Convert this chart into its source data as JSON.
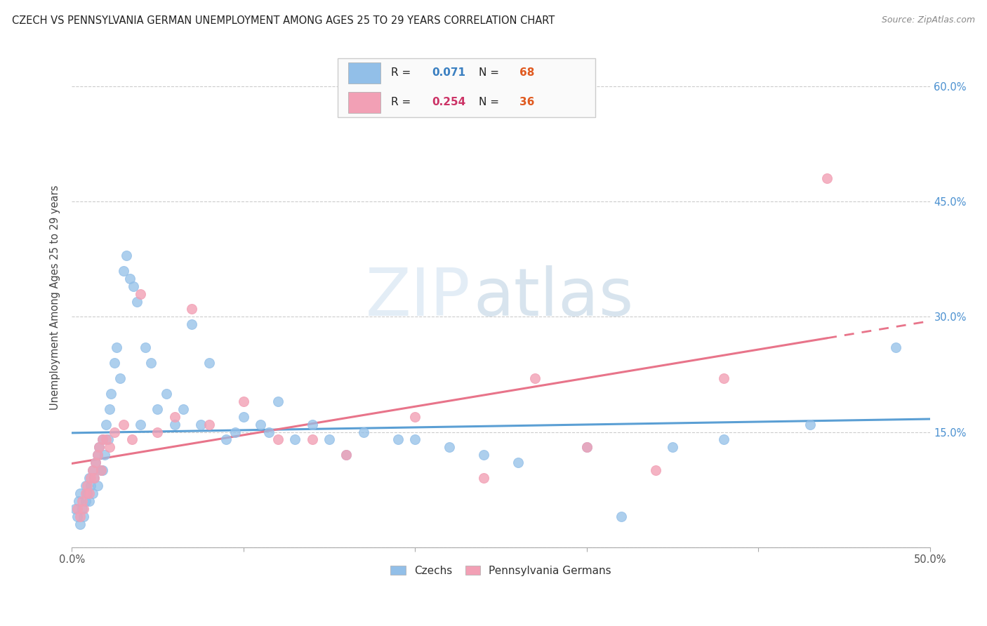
{
  "title": "CZECH VS PENNSYLVANIA GERMAN UNEMPLOYMENT AMONG AGES 25 TO 29 YEARS CORRELATION CHART",
  "source": "Source: ZipAtlas.com",
  "ylabel": "Unemployment Among Ages 25 to 29 years",
  "xlim": [
    0.0,
    0.5
  ],
  "ylim": [
    0.0,
    0.65
  ],
  "xtick_vals": [
    0.0,
    0.1,
    0.2,
    0.3,
    0.4,
    0.5
  ],
  "xticklabels_show": [
    "0.0%",
    "",
    "",
    "",
    "",
    "50.0%"
  ],
  "ytick_vals": [
    0.0,
    0.15,
    0.3,
    0.45,
    0.6
  ],
  "yticklabels_right": [
    "",
    "15.0%",
    "30.0%",
    "45.0%",
    "60.0%"
  ],
  "czech_color": "#92bfe8",
  "penn_color": "#f2a0b5",
  "czech_line_color": "#5b9fd4",
  "penn_line_color": "#e8748a",
  "czech_R": "0.071",
  "czech_N": "68",
  "penn_R": "0.254",
  "penn_N": "36",
  "legend_R_color": "#3a7fc1",
  "legend_N_color": "#e05a20",
  "watermark_zip_color": "#d0dff0",
  "watermark_atlas_color": "#c8d8e8",
  "background_color": "#ffffff",
  "czech_x": [
    0.002,
    0.003,
    0.004,
    0.005,
    0.005,
    0.006,
    0.007,
    0.008,
    0.008,
    0.009,
    0.01,
    0.01,
    0.011,
    0.012,
    0.012,
    0.013,
    0.014,
    0.015,
    0.015,
    0.016,
    0.017,
    0.018,
    0.018,
    0.019,
    0.02,
    0.021,
    0.022,
    0.023,
    0.025,
    0.026,
    0.028,
    0.03,
    0.032,
    0.034,
    0.036,
    0.038,
    0.04,
    0.043,
    0.046,
    0.05,
    0.055,
    0.06,
    0.065,
    0.07,
    0.075,
    0.08,
    0.09,
    0.095,
    0.1,
    0.11,
    0.115,
    0.12,
    0.13,
    0.14,
    0.15,
    0.16,
    0.17,
    0.19,
    0.2,
    0.22,
    0.24,
    0.26,
    0.3,
    0.32,
    0.35,
    0.38,
    0.43,
    0.48
  ],
  "czech_y": [
    0.05,
    0.04,
    0.06,
    0.07,
    0.03,
    0.05,
    0.04,
    0.06,
    0.08,
    0.07,
    0.09,
    0.06,
    0.08,
    0.1,
    0.07,
    0.09,
    0.11,
    0.12,
    0.08,
    0.13,
    0.1,
    0.14,
    0.1,
    0.12,
    0.16,
    0.14,
    0.18,
    0.2,
    0.24,
    0.26,
    0.22,
    0.36,
    0.38,
    0.35,
    0.34,
    0.32,
    0.16,
    0.26,
    0.24,
    0.18,
    0.2,
    0.16,
    0.18,
    0.29,
    0.16,
    0.24,
    0.14,
    0.15,
    0.17,
    0.16,
    0.15,
    0.19,
    0.14,
    0.16,
    0.14,
    0.12,
    0.15,
    0.14,
    0.14,
    0.13,
    0.12,
    0.11,
    0.13,
    0.04,
    0.13,
    0.14,
    0.16,
    0.26
  ],
  "penn_x": [
    0.003,
    0.005,
    0.006,
    0.007,
    0.008,
    0.009,
    0.01,
    0.011,
    0.012,
    0.013,
    0.014,
    0.015,
    0.016,
    0.017,
    0.018,
    0.02,
    0.022,
    0.025,
    0.03,
    0.035,
    0.04,
    0.05,
    0.06,
    0.07,
    0.08,
    0.1,
    0.12,
    0.14,
    0.16,
    0.2,
    0.24,
    0.27,
    0.3,
    0.34,
    0.38,
    0.44
  ],
  "penn_y": [
    0.05,
    0.04,
    0.06,
    0.05,
    0.07,
    0.08,
    0.07,
    0.09,
    0.1,
    0.09,
    0.11,
    0.12,
    0.13,
    0.1,
    0.14,
    0.14,
    0.13,
    0.15,
    0.16,
    0.14,
    0.33,
    0.15,
    0.17,
    0.31,
    0.16,
    0.19,
    0.14,
    0.14,
    0.12,
    0.17,
    0.09,
    0.22,
    0.13,
    0.1,
    0.22,
    0.48
  ]
}
